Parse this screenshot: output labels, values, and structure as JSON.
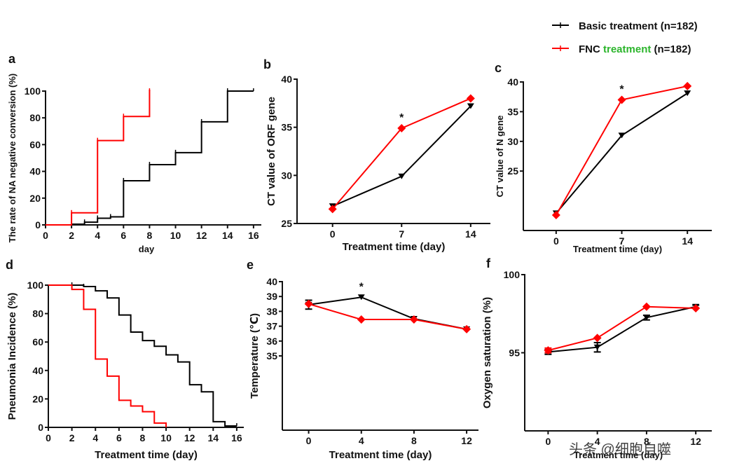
{
  "legend": {
    "items": [
      {
        "name": "Basic treatment",
        "name_parts": [
          "Basic treatment"
        ],
        "suffix": " (n=182)",
        "color": "#000000"
      },
      {
        "name": "FNC treatment",
        "name_parts": [
          "FNC ",
          "treatment"
        ],
        "suffix": " (n=182)",
        "color": "#ff0000",
        "highlight_color": "#2cb52c"
      }
    ]
  },
  "watermark": "头条 @细胞自噬",
  "colors": {
    "basic": "#000000",
    "fnc": "#ff0000"
  },
  "chart_data": [
    {
      "panel": "a",
      "type": "line",
      "step": true,
      "title": "",
      "xlabel": "day",
      "ylabel": "The rate of NA negative conversion (%)",
      "xlim": [
        0,
        16.6
      ],
      "ylim": [
        0,
        100
      ],
      "xticks": [
        0,
        2,
        4,
        6,
        8,
        10,
        12,
        14,
        16
      ],
      "yticks": [
        0,
        20,
        40,
        60,
        80,
        100
      ],
      "series": [
        {
          "name": "Basic treatment",
          "x": [
            0,
            2,
            3,
            4,
            5,
            6,
            8,
            10,
            12,
            14,
            16
          ],
          "y": [
            0,
            0.5,
            2,
            5,
            6,
            33,
            45,
            54,
            77,
            100,
            100
          ]
        },
        {
          "name": "FNC treatment",
          "x": [
            0,
            2,
            4,
            6,
            8
          ],
          "y": [
            0,
            9,
            63,
            81,
            100
          ]
        }
      ]
    },
    {
      "panel": "b",
      "type": "line",
      "title": "",
      "xlabel": "Treatment time (day)",
      "ylabel": "CT value of ORF gene",
      "xlim": [
        -3.6,
        16
      ],
      "ylim": [
        25,
        40
      ],
      "xticks": [
        0,
        7,
        14
      ],
      "yticks": [
        25,
        30,
        35,
        40
      ],
      "annotations": [
        {
          "text": "*",
          "x": 7
        }
      ],
      "series": [
        {
          "name": "Basic treatment",
          "x": [
            0,
            7,
            14
          ],
          "y": [
            26.8,
            29.9,
            37.2
          ]
        },
        {
          "name": "FNC treatment",
          "x": [
            0,
            7,
            14
          ],
          "y": [
            26.5,
            34.9,
            38.0
          ]
        }
      ]
    },
    {
      "panel": "c",
      "type": "line",
      "title": "",
      "xlabel": "Treatment time (day)",
      "ylabel": "CT value of N gene",
      "xlim": [
        -3.5,
        16.6
      ],
      "ylim": [
        15,
        40
      ],
      "xticks": [
        0,
        7,
        14
      ],
      "yticks": [
        25,
        30,
        35,
        40
      ],
      "annotations": [
        {
          "text": "*",
          "x": 7
        }
      ],
      "series": [
        {
          "name": "Basic treatment",
          "x": [
            0,
            7,
            14
          ],
          "y": [
            17.9,
            31.0,
            38.1
          ]
        },
        {
          "name": "FNC treatment",
          "x": [
            0,
            7,
            14
          ],
          "y": [
            17.6,
            37.0,
            39.3
          ]
        }
      ]
    },
    {
      "panel": "d",
      "type": "line",
      "step": true,
      "title": "",
      "xlabel": "Treatment time (day)",
      "ylabel": "Pneumonia Incidence (%)",
      "xlim": [
        0,
        16.6
      ],
      "ylim": [
        0,
        100
      ],
      "xticks": [
        0,
        2,
        4,
        6,
        8,
        10,
        12,
        14,
        16
      ],
      "yticks": [
        0,
        20,
        40,
        60,
        80,
        100
      ],
      "series": [
        {
          "name": "Basic treatment",
          "x": [
            0,
            2,
            3,
            4,
            5,
            6,
            7,
            8,
            9,
            10,
            11,
            12,
            13,
            14,
            15,
            16
          ],
          "y": [
            100,
            100,
            99,
            96,
            91,
            79,
            67,
            61,
            57,
            51,
            46,
            30,
            25,
            4,
            1,
            1
          ]
        },
        {
          "name": "FNC treatment",
          "x": [
            0,
            2,
            3,
            4,
            5,
            6,
            7,
            8,
            9,
            10
          ],
          "y": [
            100,
            97,
            83,
            48,
            36,
            19,
            15,
            11,
            3,
            0
          ]
        }
      ]
    },
    {
      "panel": "e",
      "type": "line",
      "title": "",
      "xlabel": "Treatment time (day)",
      "ylabel": "Temperature (℃)",
      "xlim": [
        -2,
        12.9
      ],
      "ylim": [
        30,
        40
      ],
      "xticks": [
        0,
        4,
        8,
        12
      ],
      "yticks": [
        35,
        36,
        37,
        38,
        39,
        40
      ],
      "annotations": [
        {
          "text": "*",
          "x": 4
        }
      ],
      "series": [
        {
          "name": "Basic treatment",
          "x": [
            0,
            4,
            8,
            12
          ],
          "y": [
            38.45,
            38.95,
            37.5,
            36.8
          ],
          "err": [
            0.3,
            0.05,
            0.05,
            0.05
          ]
        },
        {
          "name": "FNC treatment",
          "x": [
            0,
            4,
            8,
            12
          ],
          "y": [
            38.5,
            37.45,
            37.45,
            36.8
          ]
        }
      ]
    },
    {
      "panel": "f",
      "type": "line",
      "title": "",
      "xlabel": "Treatment time (day)",
      "ylabel": "Oxygen saturation (%)",
      "xlim": [
        -1.9,
        13.3
      ],
      "ylim": [
        90,
        100
      ],
      "xticks": [
        0,
        4,
        8,
        12
      ],
      "yticks": [
        95,
        100
      ],
      "series": [
        {
          "name": "Basic treatment",
          "x": [
            0,
            4,
            8,
            12
          ],
          "y": [
            95.05,
            95.35,
            97.25,
            97.95
          ],
          "err": [
            0.15,
            0.3,
            0.15,
            0.1
          ]
        },
        {
          "name": "FNC treatment",
          "x": [
            0,
            4,
            8,
            12
          ],
          "y": [
            95.15,
            95.95,
            97.95,
            97.85
          ],
          "err": [
            0.15,
            0.05,
            0.05,
            0.05
          ]
        }
      ]
    }
  ]
}
